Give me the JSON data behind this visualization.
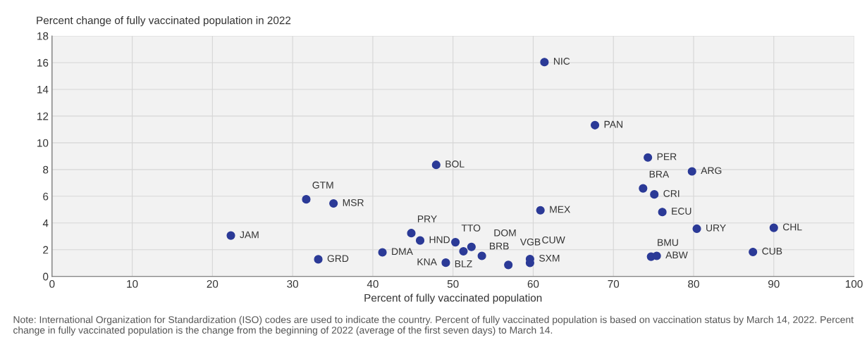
{
  "chart_data": {
    "type": "scatter",
    "xlabel": "Percent of fully vaccinated population",
    "ylabel": "Percent change of fully vaccinated population in 2022",
    "series": [
      {
        "color": "#2b3a97",
        "x": [
          22.3,
          33.2,
          31.7,
          35.1,
          47.9,
          60.9,
          44.8,
          45.9,
          50.3,
          51.3,
          52.3,
          41.2,
          49.1,
          53.6,
          56.9,
          59.6,
          59.6,
          74.3,
          79.8,
          73.7,
          75.1,
          76.1,
          80.4,
          90.0,
          87.4,
          74.7,
          75.4,
          61.4,
          67.7
        ],
        "values": [
          3.06,
          1.28,
          5.77,
          5.46,
          8.35,
          4.95,
          3.24,
          2.69,
          2.56,
          1.88,
          2.21,
          1.8,
          1.03,
          1.54,
          0.86,
          1.3,
          1.01,
          8.9,
          7.86,
          6.59,
          6.14,
          4.82,
          3.57,
          3.64,
          1.83,
          1.48,
          1.54,
          16.04,
          11.32
        ]
      }
    ],
    "marker": "circle",
    "xlim": [
      0,
      100
    ],
    "xticks": [
      0,
      10,
      20,
      30,
      40,
      50,
      60,
      70,
      80,
      90,
      100
    ],
    "ylim": [
      0,
      18
    ],
    "yticks": [
      0,
      2,
      4,
      6,
      8,
      10,
      12,
      14,
      16,
      18
    ],
    "grid": true,
    "annotations": [
      {
        "text": "JAM",
        "x": 22.3,
        "y": 3.06
      },
      {
        "text": "GRD",
        "x": 33.2,
        "y": 1.28
      },
      {
        "text": "GTM",
        "x": 31.7,
        "y": 5.77
      },
      {
        "text": "MSR",
        "x": 35.1,
        "y": 5.46
      },
      {
        "text": "BOL",
        "x": 47.9,
        "y": 8.35
      },
      {
        "text": "MEX",
        "x": 60.9,
        "y": 4.95
      },
      {
        "text": "PRY",
        "x": 44.8,
        "y": 3.24
      },
      {
        "text": "HND",
        "x": 45.9,
        "y": 2.69
      },
      {
        "text": "TTO",
        "x": 50.3,
        "y": 2.56
      },
      {
        "text": "BLZ",
        "x": 51.3,
        "y": 1.88
      },
      {
        "text": "BRB",
        "x": 52.3,
        "y": 2.21
      },
      {
        "text": "DMA",
        "x": 41.2,
        "y": 1.8
      },
      {
        "text": "KNA",
        "x": 49.1,
        "y": 1.03
      },
      {
        "text": "DOM",
        "x": 53.6,
        "y": 1.54
      },
      {
        "text": "VGB",
        "x": 56.9,
        "y": 0.86
      },
      {
        "text": "SXM",
        "x": 59.6,
        "y": 1.3
      },
      {
        "text": "CUW",
        "x": 59.6,
        "y": 1.01
      },
      {
        "text": "PER",
        "x": 74.3,
        "y": 8.9
      },
      {
        "text": "ARG",
        "x": 79.8,
        "y": 7.86
      },
      {
        "text": "BRA",
        "x": 73.7,
        "y": 6.59
      },
      {
        "text": "CRI",
        "x": 75.1,
        "y": 6.14
      },
      {
        "text": "ECU",
        "x": 76.1,
        "y": 4.82
      },
      {
        "text": "URY",
        "x": 80.4,
        "y": 3.57
      },
      {
        "text": "CHL",
        "x": 90.0,
        "y": 3.64
      },
      {
        "text": "CUB",
        "x": 87.4,
        "y": 1.83
      },
      {
        "text": "BMU",
        "x": 74.7,
        "y": 1.48
      },
      {
        "text": "ABW",
        "x": 75.4,
        "y": 1.54
      },
      {
        "text": "NIC",
        "x": 61.4,
        "y": 16.04
      },
      {
        "text": "PAN",
        "x": 67.7,
        "y": 11.32
      },
      "Note: International Organization for Standardization (ISO) codes are used to indicate the country. Percent of fully vaccinated population is based on vaccination status by March 14, 2022. Percent change in fully vaccinated population is the change from the beginning of 2022 (average of the first seven days) to March 14."
    ]
  }
}
